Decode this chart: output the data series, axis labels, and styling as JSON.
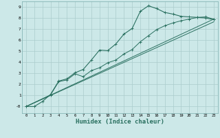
{
  "bg_color": "#cce8e8",
  "grid_color": "#aacccc",
  "line_color": "#2a7060",
  "xlabel": "Humidex (Indice chaleur)",
  "xlabel_fontsize": 6.5,
  "ytick_labels": [
    "-0",
    "1",
    "2",
    "3",
    "4",
    "5",
    "6",
    "7",
    "8",
    "9"
  ],
  "xtick_labels": [
    "0",
    "1",
    "2",
    "3",
    "4",
    "5",
    "6",
    "7",
    "8",
    "9",
    "10",
    "11",
    "12",
    "13",
    "14",
    "15",
    "16",
    "17",
    "18",
    "19",
    "20",
    "21",
    "22",
    "23"
  ],
  "xlim": [
    -0.5,
    23.5
  ],
  "ylim": [
    -0.6,
    9.5
  ],
  "line1_x": [
    0,
    1,
    2,
    3,
    4,
    5,
    6,
    7,
    8,
    9,
    10,
    11,
    12,
    13,
    14,
    15,
    16,
    17,
    18,
    19,
    20,
    21,
    22,
    23
  ],
  "line1_y": [
    0.0,
    0.0,
    0.45,
    1.1,
    2.3,
    2.5,
    3.05,
    3.35,
    4.2,
    5.1,
    5.05,
    5.65,
    6.55,
    7.05,
    8.6,
    9.1,
    8.85,
    8.5,
    8.35,
    8.15,
    8.1,
    8.05,
    8.0,
    7.85
  ],
  "line2_x": [
    0,
    3,
    4,
    5,
    6,
    7,
    8,
    9,
    10,
    11,
    12,
    13,
    14,
    15,
    16,
    17,
    18,
    19,
    20,
    21,
    22,
    23
  ],
  "line2_y": [
    0.0,
    1.05,
    2.25,
    2.4,
    2.95,
    2.7,
    3.25,
    3.5,
    3.95,
    4.2,
    4.75,
    5.15,
    5.85,
    6.4,
    6.95,
    7.3,
    7.55,
    7.75,
    7.9,
    8.05,
    8.1,
    7.9
  ],
  "line3_x": [
    0,
    23
  ],
  "line3_y": [
    0.0,
    7.9
  ],
  "line4_x": [
    0,
    23
  ],
  "line4_y": [
    0.0,
    7.65
  ]
}
